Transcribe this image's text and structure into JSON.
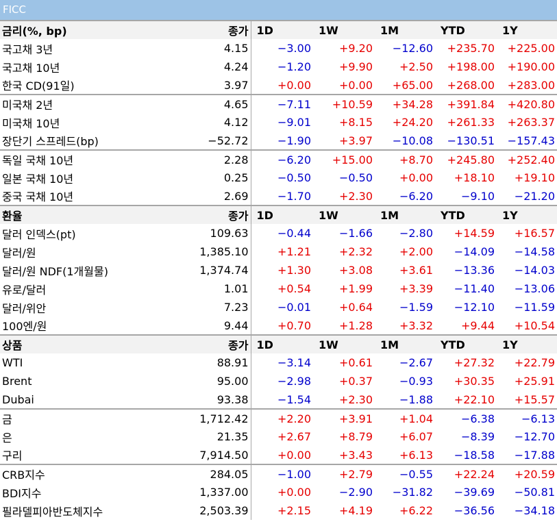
{
  "title": "FICC",
  "colors": {
    "header_bar": "#9dc3e6",
    "positive": "#e60000",
    "negative": "#0000cc",
    "section_header_bg": "#f2f2f2"
  },
  "sections": [
    {
      "header": {
        "name": "금리(%, bp)",
        "close": "종가",
        "periods": [
          "1D",
          "1W",
          "1M",
          "YTD",
          "1Y"
        ]
      },
      "groups": [
        [
          {
            "name": "국고채 3년",
            "close": "4.15",
            "changes": [
              "−3.00",
              "+9.20",
              "−12.60",
              "+235.70",
              "+225.00"
            ]
          },
          {
            "name": "국고채 10년",
            "close": "4.24",
            "changes": [
              "−1.20",
              "+9.90",
              "+2.50",
              "+198.00",
              "+190.00"
            ]
          },
          {
            "name": "한국 CD(91일)",
            "close": "3.97",
            "changes": [
              "+0.00",
              "+0.00",
              "+65.00",
              "+268.00",
              "+283.00"
            ]
          }
        ],
        [
          {
            "name": "미국채 2년",
            "close": "4.65",
            "changes": [
              "−7.11",
              "+10.59",
              "+34.28",
              "+391.84",
              "+420.80"
            ]
          },
          {
            "name": "미국채 10년",
            "close": "4.12",
            "changes": [
              "−9.01",
              "+8.15",
              "+24.20",
              "+261.33",
              "+263.37"
            ]
          },
          {
            "name": "장단기 스프레드(bp)",
            "close": "−52.72",
            "changes": [
              "−1.90",
              "+3.97",
              "−10.08",
              "−130.51",
              "−157.43"
            ]
          }
        ],
        [
          {
            "name": "독일 국채 10년",
            "close": "2.28",
            "changes": [
              "−6.20",
              "+15.00",
              "+8.70",
              "+245.80",
              "+252.40"
            ]
          },
          {
            "name": "일본 국채 10년",
            "close": "0.25",
            "changes": [
              "−0.50",
              "−0.50",
              "+0.00",
              "+18.10",
              "+19.10"
            ]
          },
          {
            "name": "중국 국채 10년",
            "close": "2.69",
            "changes": [
              "−1.70",
              "+2.30",
              "−6.20",
              "−9.10",
              "−21.20"
            ]
          }
        ]
      ]
    },
    {
      "header": {
        "name": "환율",
        "close": "종가",
        "periods": [
          "1D",
          "1W",
          "1M",
          "YTD",
          "1Y"
        ]
      },
      "groups": [
        [
          {
            "name": "달러 인덱스(pt)",
            "close": "109.63",
            "changes": [
              "−0.44",
              "−1.66",
              "−2.80",
              "+14.59",
              "+16.57"
            ]
          },
          {
            "name": "달러/원",
            "close": "1,385.10",
            "changes": [
              "+1.21",
              "+2.32",
              "+2.00",
              "−14.09",
              "−14.58"
            ]
          },
          {
            "name": "달러/원 NDF(1개월물)",
            "close": "1,374.74",
            "changes": [
              "+1.30",
              "+3.08",
              "+3.61",
              "−13.36",
              "−14.03"
            ]
          },
          {
            "name": "유로/달러",
            "close": "1.01",
            "changes": [
              "+0.54",
              "+1.99",
              "+3.39",
              "−11.40",
              "−13.06"
            ]
          },
          {
            "name": "달러/위안",
            "close": "7.23",
            "changes": [
              "−0.01",
              "+0.64",
              "−1.59",
              "−12.10",
              "−11.59"
            ]
          },
          {
            "name": "100엔/원",
            "close": "9.44",
            "changes": [
              "+0.70",
              "+1.28",
              "+3.32",
              "+9.44",
              "+10.54"
            ]
          }
        ]
      ]
    },
    {
      "header": {
        "name": "상품",
        "close": "종가",
        "periods": [
          "1D",
          "1W",
          "1M",
          "YTD",
          "1Y"
        ]
      },
      "groups": [
        [
          {
            "name": "WTI",
            "close": "88.91",
            "changes": [
              "−3.14",
              "+0.61",
              "−2.67",
              "+27.32",
              "+22.79"
            ]
          },
          {
            "name": "Brent",
            "close": "95.00",
            "changes": [
              "−2.98",
              "+0.37",
              "−0.93",
              "+30.35",
              "+25.91"
            ]
          },
          {
            "name": "Dubai",
            "close": "93.38",
            "changes": [
              "−1.54",
              "+2.30",
              "−1.88",
              "+22.10",
              "+15.57"
            ]
          }
        ],
        [
          {
            "name": "금",
            "close": "1,712.42",
            "changes": [
              "+2.20",
              "+3.91",
              "+1.04",
              "−6.38",
              "−6.13"
            ]
          },
          {
            "name": "은",
            "close": "21.35",
            "changes": [
              "+2.67",
              "+8.79",
              "+6.07",
              "−8.39",
              "−12.70"
            ]
          },
          {
            "name": "구리",
            "close": "7,914.50",
            "changes": [
              "+0.00",
              "+3.43",
              "+6.13",
              "−18.58",
              "−17.88"
            ]
          }
        ],
        [
          {
            "name": "CRB지수",
            "close": "284.05",
            "changes": [
              "−1.00",
              "+2.79",
              "−0.55",
              "+22.24",
              "+20.59"
            ]
          },
          {
            "name": "BDI지수",
            "close": "1,337.00",
            "changes": [
              "+0.00",
              "−2.90",
              "−31.82",
              "−39.69",
              "−50.81"
            ]
          },
          {
            "name": "필라델피아반도체지수",
            "close": "2,503.39",
            "changes": [
              "+2.15",
              "+4.19",
              "+6.22",
              "−36.56",
              "−34.18"
            ]
          }
        ]
      ]
    }
  ]
}
